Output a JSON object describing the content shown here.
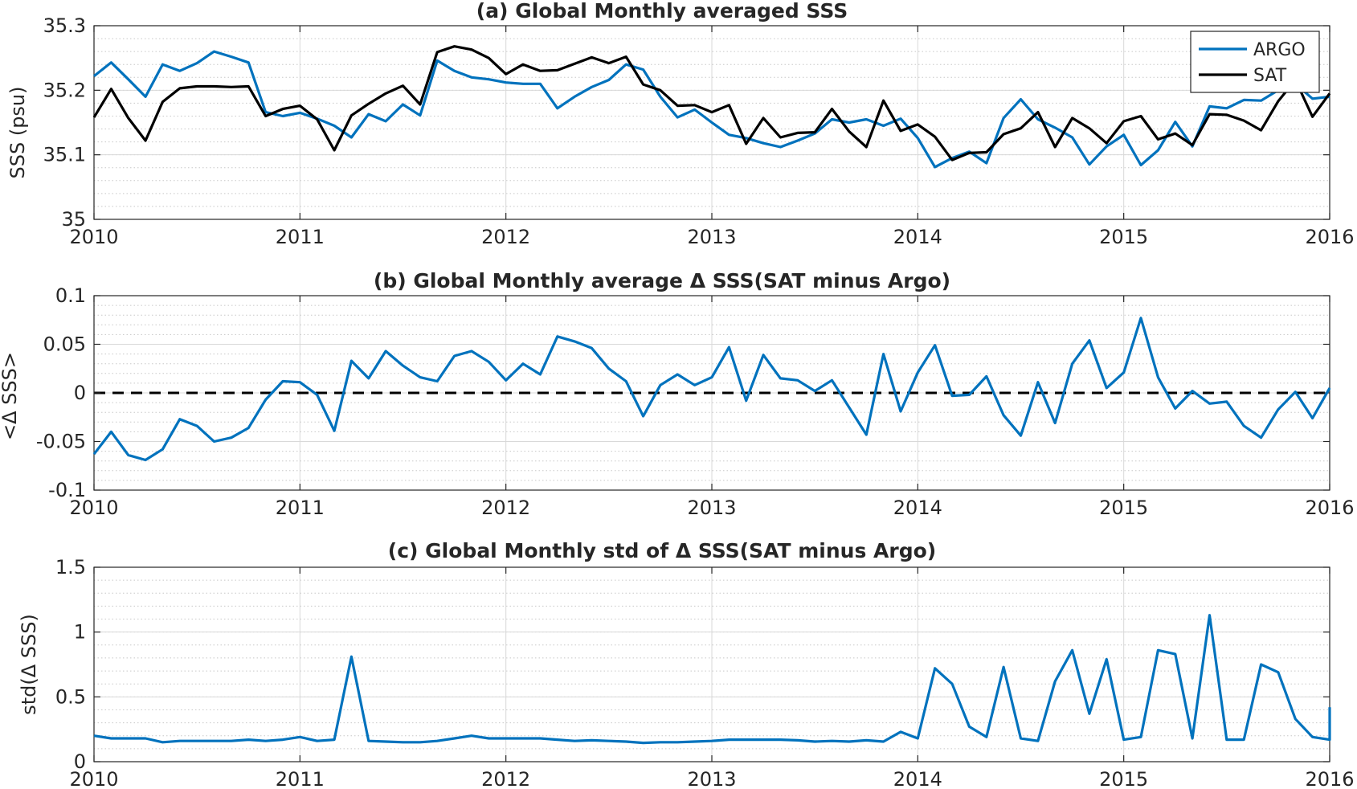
{
  "colors": {
    "argo": "#0072BD",
    "sat": "#000000",
    "grid": "#d9d9d9",
    "minor_grid": "#c8c8c8",
    "axis": "#262626"
  },
  "chart_data": [
    {
      "type": "line",
      "title": "(a) Global Monthly averaged SSS",
      "ylabel": "SSS (psu)",
      "xlabel": "",
      "xlim": [
        2010,
        2016
      ],
      "ylim": [
        35,
        35.3
      ],
      "xticks": [
        "2010",
        "2011",
        "2012",
        "2013",
        "2014",
        "2015",
        "2016"
      ],
      "yticks": [
        "35",
        "35.1",
        "35.2",
        "35.3"
      ],
      "yminor_step": 0.02,
      "grid": true,
      "legend": "top-right",
      "series": [
        {
          "name": "ARGO",
          "color": "#0072BD",
          "values": [
            35.222,
            35.243,
            35.217,
            35.19,
            35.24,
            35.23,
            35.242,
            35.26,
            35.252,
            35.243,
            35.166,
            35.16,
            35.165,
            35.156,
            35.145,
            35.127,
            35.163,
            35.152,
            35.178,
            35.161,
            35.246,
            35.23,
            35.22,
            35.217,
            35.212,
            35.21,
            35.21,
            35.172,
            35.19,
            35.205,
            35.216,
            35.24,
            35.232,
            35.19,
            35.158,
            35.17,
            35.15,
            35.131,
            35.126,
            35.118,
            35.112,
            35.122,
            35.133,
            35.155,
            35.15,
            35.155,
            35.145,
            35.156,
            35.126,
            35.081,
            35.095,
            35.105,
            35.087,
            35.157,
            35.186,
            35.155,
            35.142,
            35.127,
            35.085,
            35.113,
            35.131,
            35.084,
            35.107,
            35.151,
            35.113,
            35.175,
            35.172,
            35.185,
            35.184,
            35.2,
            35.21,
            35.187,
            35.19
          ]
        },
        {
          "name": "SAT",
          "color": "#000000",
          "values": [
            35.158,
            35.202,
            35.157,
            35.122,
            35.182,
            35.203,
            35.206,
            35.206,
            35.205,
            35.206,
            35.16,
            35.171,
            35.176,
            35.155,
            35.107,
            35.161,
            35.179,
            35.195,
            35.207,
            35.178,
            35.259,
            35.268,
            35.263,
            35.25,
            35.225,
            35.24,
            35.23,
            35.231,
            35.241,
            35.251,
            35.242,
            35.252,
            35.209,
            35.2,
            35.176,
            35.177,
            35.166,
            35.177,
            35.117,
            35.157,
            35.127,
            35.134,
            35.135,
            35.171,
            35.136,
            35.112,
            35.184,
            35.137,
            35.147,
            35.128,
            35.092,
            35.103,
            35.104,
            35.132,
            35.141,
            35.166,
            35.112,
            35.157,
            35.141,
            35.118,
            35.152,
            35.16,
            35.124,
            35.133,
            35.115,
            35.163,
            35.162,
            35.153,
            35.138,
            35.183,
            35.216,
            35.159,
            35.195
          ]
        }
      ],
      "x_start": "2010-01",
      "x_step": "monthly"
    },
    {
      "type": "line",
      "title": "(b) Global Monthly average Δ SSS(SAT minus Argo)",
      "ylabel": "<Δ SSS>",
      "xlabel": "",
      "xlim": [
        2010,
        2016
      ],
      "ylim": [
        -0.1,
        0.1
      ],
      "xticks": [
        "2010",
        "2011",
        "2012",
        "2013",
        "2014",
        "2015",
        "2016"
      ],
      "yticks": [
        "-0.1",
        "-0.05",
        "0",
        "0.05",
        "0.1"
      ],
      "yminor_step": 0.01,
      "grid": true,
      "zero_line": "dashed",
      "series": [
        {
          "name": "",
          "color": "#0072BD",
          "values": [
            -0.063,
            -0.04,
            -0.064,
            -0.069,
            -0.058,
            -0.027,
            -0.034,
            -0.05,
            -0.046,
            -0.036,
            -0.007,
            0.012,
            0.011,
            -0.002,
            -0.039,
            0.033,
            0.015,
            0.043,
            0.028,
            0.016,
            0.012,
            0.038,
            0.043,
            0.032,
            0.013,
            0.03,
            0.019,
            0.058,
            0.053,
            0.046,
            0.025,
            0.012,
            -0.024,
            0.008,
            0.019,
            0.008,
            0.016,
            0.047,
            -0.008,
            0.039,
            0.015,
            0.013,
            0.002,
            0.013,
            -0.015,
            -0.043,
            0.04,
            -0.019,
            0.021,
            0.049,
            -0.003,
            -0.002,
            0.017,
            -0.023,
            -0.044,
            0.011,
            -0.031,
            0.03,
            0.054,
            0.005,
            0.021,
            0.077,
            0.016,
            -0.016,
            0.002,
            -0.011,
            -0.009,
            -0.034,
            -0.046,
            -0.017,
            0.001,
            -0.026,
            0.005
          ]
        }
      ],
      "x_start": "2010-01",
      "x_step": "monthly"
    },
    {
      "type": "line",
      "title": "(c) Global Monthly std of Δ SSS(SAT minus Argo)",
      "ylabel": "std(Δ SSS)",
      "xlabel": "",
      "xlim": [
        2010,
        2016
      ],
      "ylim": [
        0,
        1.5
      ],
      "xticks": [
        "2010",
        "2011",
        "2012",
        "2013",
        "2014",
        "2015",
        "2016"
      ],
      "yticks": [
        "0",
        "0.5",
        "1",
        "1.5"
      ],
      "yminor_step": 0.1,
      "grid": true,
      "series": [
        {
          "name": "",
          "color": "#0072BD",
          "values": [
            0.2,
            0.18,
            0.18,
            0.18,
            0.15,
            0.16,
            0.16,
            0.16,
            0.16,
            0.17,
            0.16,
            0.17,
            0.19,
            0.16,
            0.17,
            0.81,
            0.16,
            0.155,
            0.15,
            0.15,
            0.16,
            0.18,
            0.2,
            0.18,
            0.18,
            0.18,
            0.18,
            0.17,
            0.16,
            0.165,
            0.16,
            0.155,
            0.145,
            0.15,
            0.15,
            0.155,
            0.16,
            0.17,
            0.17,
            0.17,
            0.17,
            0.165,
            0.155,
            0.16,
            0.155,
            0.165,
            0.155,
            0.23,
            0.18,
            0.72,
            0.6,
            0.27,
            0.19,
            0.73,
            0.18,
            0.16,
            0.62,
            0.86,
            0.37,
            0.79,
            0.17,
            0.19,
            0.86,
            0.83,
            0.18,
            1.13,
            0.17,
            0.17,
            0.75,
            0.69,
            0.33,
            0.19,
            0.17,
            0.42
          ]
        }
      ],
      "x_start": "2010-01",
      "x_step": "monthly"
    }
  ]
}
